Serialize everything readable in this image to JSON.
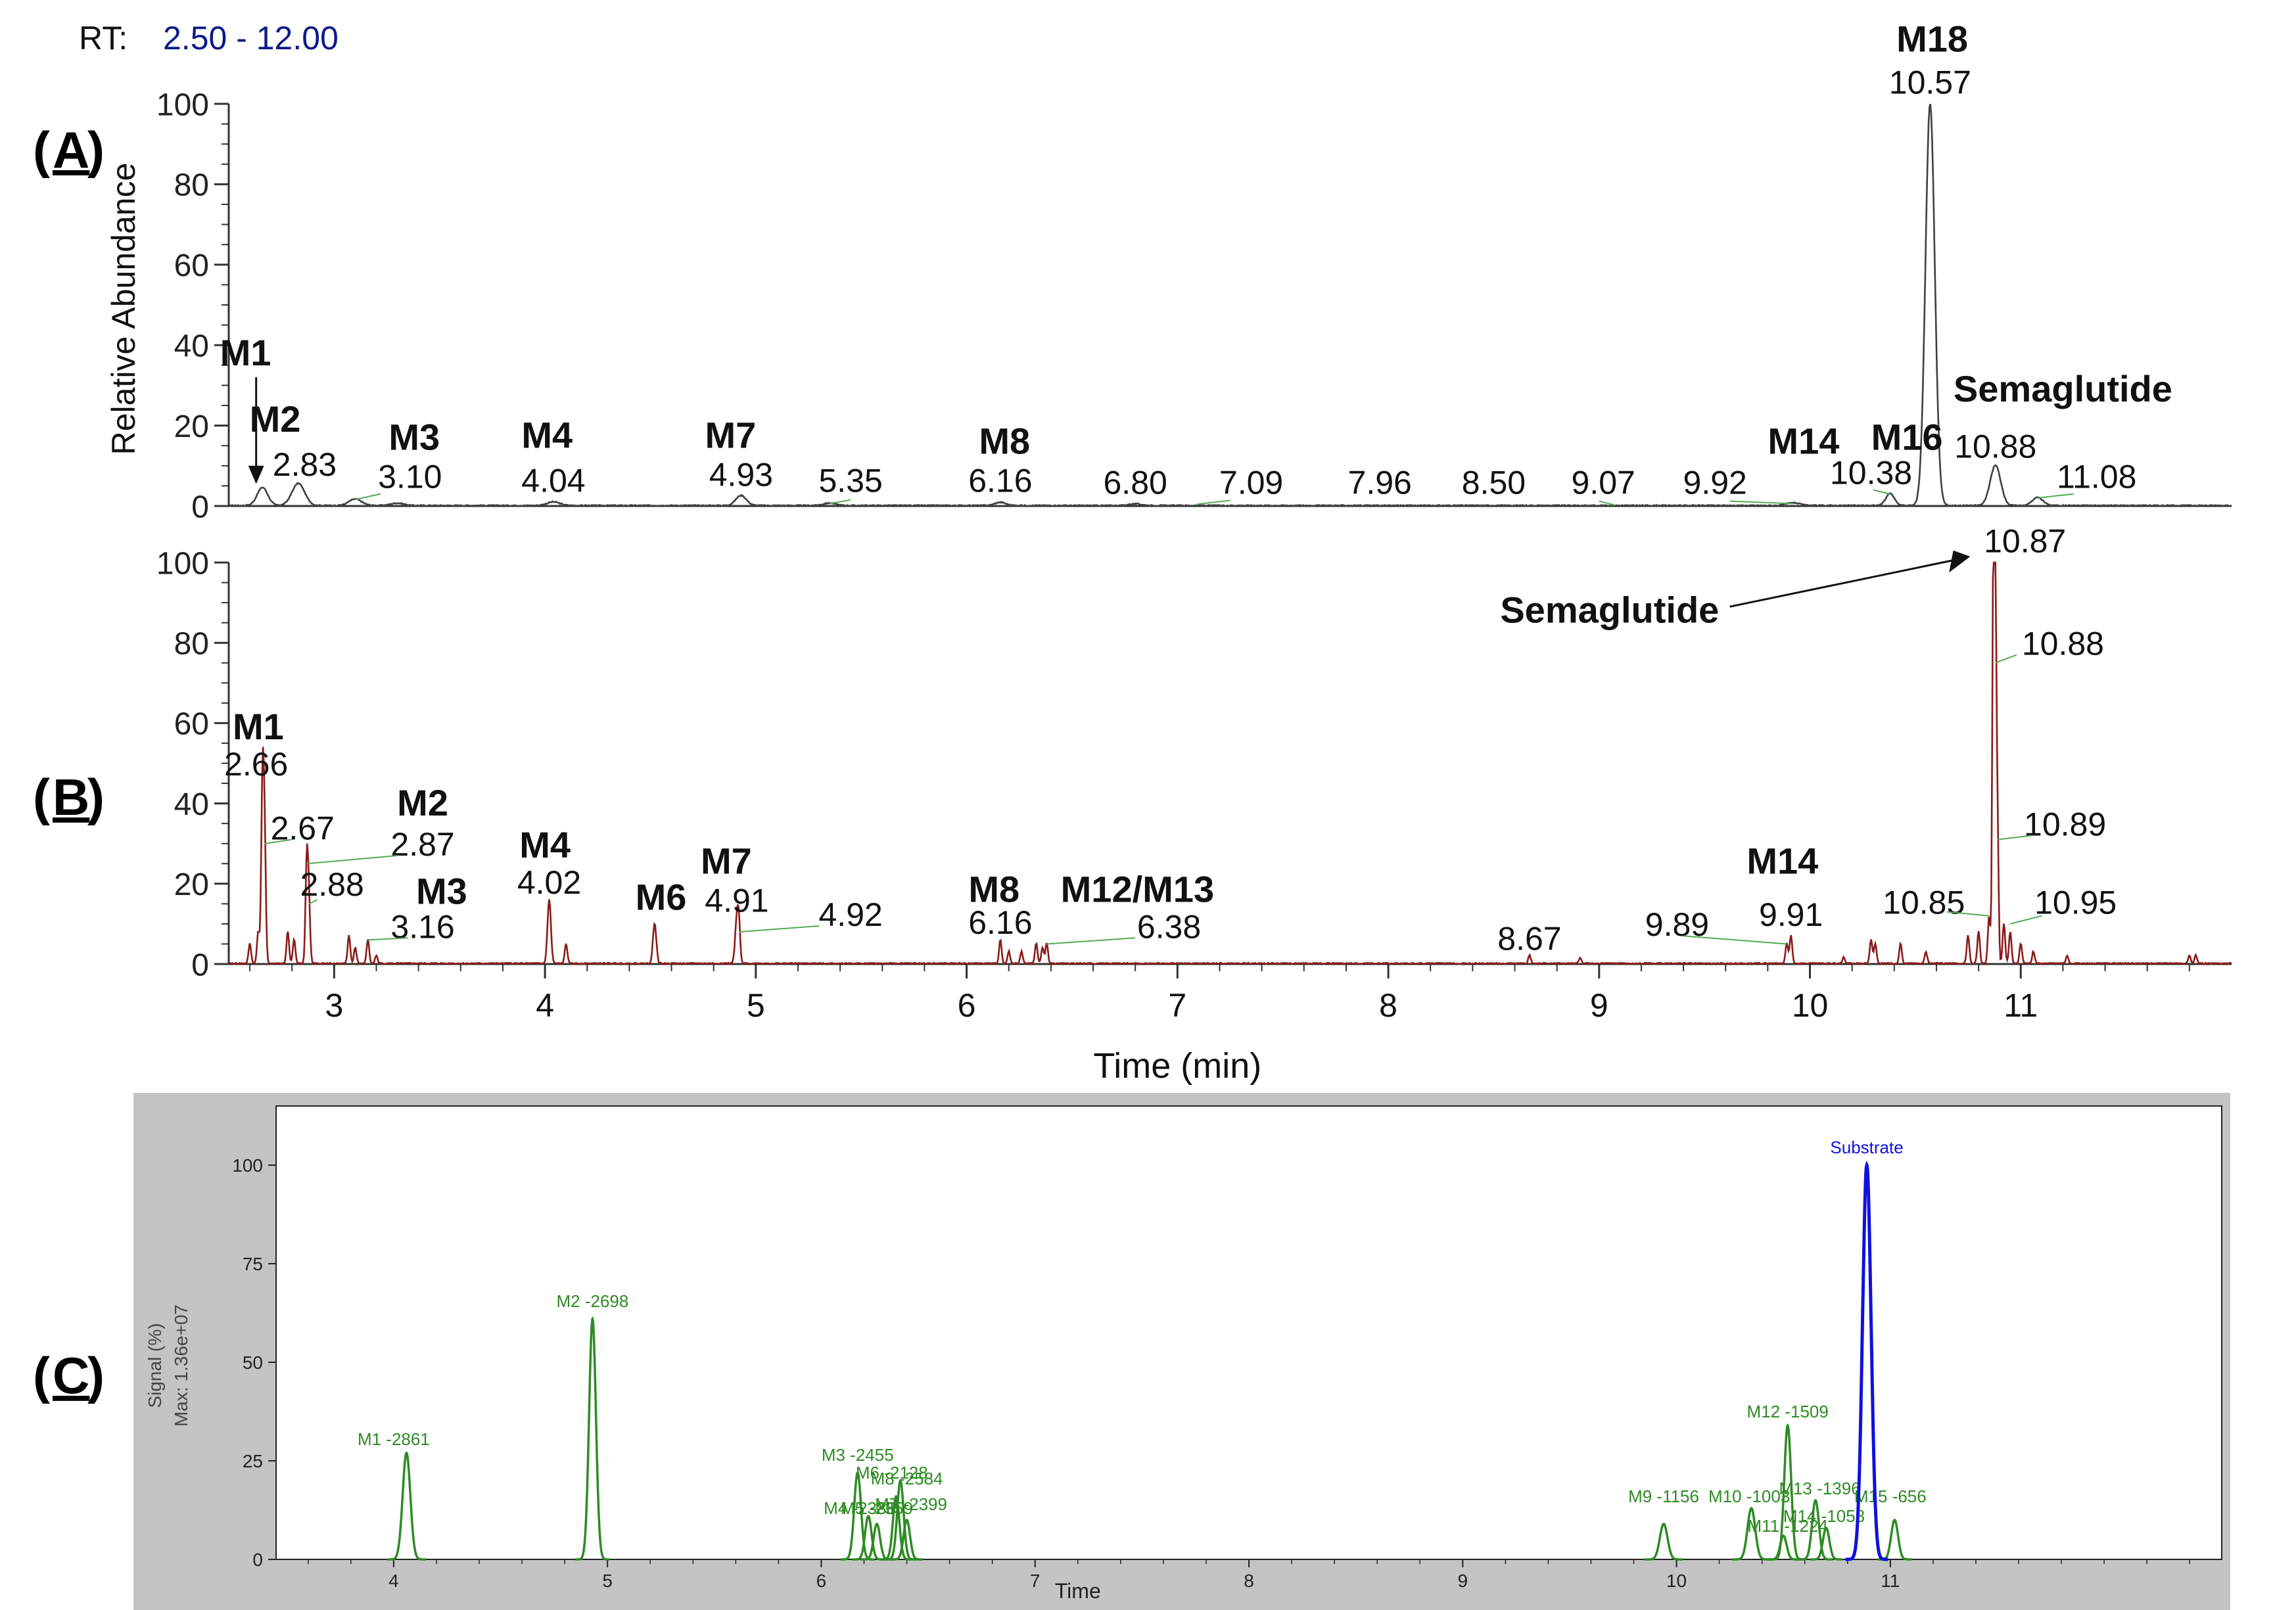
{
  "rt_label": "RT:",
  "rt_range": "2.50 - 12.00",
  "colors": {
    "ms_trace": "#404040",
    "red_trace": "#8b1a1a",
    "green_trace": "#2e8b24",
    "substrate": "#1010e0",
    "panel_c_bg": "#c4c4c4",
    "leader": "#55aa55",
    "rt_range": "#0b1a88"
  },
  "panel_labels": {
    "A": "A",
    "B": "B",
    "C": "C"
  },
  "chart_data": [
    {
      "type": "line",
      "panel": "A",
      "ylabel": "Relative Abundance",
      "xlim": [
        2.5,
        12.0
      ],
      "ylim": [
        0,
        100
      ],
      "yticks": [
        0,
        20,
        40,
        60,
        80,
        100
      ],
      "grid": false,
      "peaks": [
        {
          "x": 2.66,
          "y": 4.5,
          "w": 0.025
        },
        {
          "x": 2.83,
          "y": 5.5,
          "w": 0.03
        },
        {
          "x": 3.1,
          "y": 1.6,
          "w": 0.03
        },
        {
          "x": 3.3,
          "y": 0.6,
          "w": 0.03
        },
        {
          "x": 4.04,
          "y": 0.9,
          "w": 0.03
        },
        {
          "x": 4.93,
          "y": 2.5,
          "w": 0.025
        },
        {
          "x": 5.35,
          "y": 0.6,
          "w": 0.03
        },
        {
          "x": 6.16,
          "y": 0.8,
          "w": 0.025
        },
        {
          "x": 6.8,
          "y": 0.4,
          "w": 0.03
        },
        {
          "x": 9.92,
          "y": 0.7,
          "w": 0.03
        },
        {
          "x": 10.38,
          "y": 3.0,
          "w": 0.02
        },
        {
          "x": 10.57,
          "y": 100,
          "w": 0.022
        },
        {
          "x": 10.88,
          "y": 10.0,
          "w": 0.025
        },
        {
          "x": 11.08,
          "y": 2.0,
          "w": 0.025
        }
      ],
      "labels": [
        {
          "text": "2.83",
          "x": 2.86,
          "y": 7.5
        },
        {
          "text": "3.10",
          "x": 3.36,
          "y": 4.5
        },
        {
          "text": "4.04",
          "x": 4.04,
          "y": 3.5
        },
        {
          "text": "4.93",
          "x": 4.93,
          "y": 5.0
        },
        {
          "text": "5.35",
          "x": 5.45,
          "y": 3.5
        },
        {
          "text": "6.16",
          "x": 6.16,
          "y": 3.5
        },
        {
          "text": "6.80",
          "x": 6.8,
          "y": 3.0
        },
        {
          "text": "7.09",
          "x": 7.35,
          "y": 3.0
        },
        {
          "text": "7.96",
          "x": 7.96,
          "y": 3.0
        },
        {
          "text": "8.50",
          "x": 8.5,
          "y": 3.0
        },
        {
          "text": "9.07",
          "x": 9.02,
          "y": 3.0
        },
        {
          "text": "9.92",
          "x": 9.55,
          "y": 3.0
        },
        {
          "text": "10.38",
          "x": 10.29,
          "y": 5.5
        },
        {
          "text": "10.57",
          "x": 10.57,
          "y": 102.5
        },
        {
          "text": "10.88",
          "x": 10.88,
          "y": 12.0
        },
        {
          "text": "11.08",
          "x": 11.36,
          "y": 4.5
        }
      ],
      "metabolites": [
        {
          "text": "M1",
          "x": 2.58,
          "y": 35
        },
        {
          "text": "M2",
          "x": 2.72,
          "y": 18.5
        },
        {
          "text": "M3",
          "x": 3.38,
          "y": 14
        },
        {
          "text": "M4",
          "x": 4.01,
          "y": 14.5
        },
        {
          "text": "M7",
          "x": 4.88,
          "y": 14.5
        },
        {
          "text": "M8",
          "x": 6.18,
          "y": 13
        },
        {
          "text": "M14",
          "x": 9.97,
          "y": 13
        },
        {
          "text": "M16",
          "x": 10.46,
          "y": 14
        },
        {
          "text": "M18",
          "x": 10.58,
          "y": 113
        },
        {
          "text": "Semaglutide",
          "x": 11.2,
          "y": 26
        }
      ]
    },
    {
      "type": "line",
      "panel": "B",
      "xlabel": "Time (min)",
      "xlim": [
        2.5,
        12.0
      ],
      "ylim": [
        0,
        100
      ],
      "yticks": [
        0,
        20,
        40,
        60,
        80,
        100
      ],
      "xticks": [
        3,
        4,
        5,
        6,
        7,
        8,
        9,
        10,
        11
      ],
      "grid": false,
      "peaks": [
        {
          "x": 2.6,
          "y": 5,
          "w": 0.006
        },
        {
          "x": 2.64,
          "y": 8,
          "w": 0.006
        },
        {
          "x": 2.66,
          "y": 44,
          "w": 0.006
        },
        {
          "x": 2.67,
          "y": 30,
          "w": 0.006
        },
        {
          "x": 2.78,
          "y": 8,
          "w": 0.006
        },
        {
          "x": 2.81,
          "y": 6,
          "w": 0.006
        },
        {
          "x": 2.87,
          "y": 25,
          "w": 0.006
        },
        {
          "x": 2.88,
          "y": 15,
          "w": 0.006
        },
        {
          "x": 3.07,
          "y": 7,
          "w": 0.006
        },
        {
          "x": 3.1,
          "y": 4,
          "w": 0.006
        },
        {
          "x": 3.16,
          "y": 6,
          "w": 0.006
        },
        {
          "x": 3.2,
          "y": 2,
          "w": 0.006
        },
        {
          "x": 4.02,
          "y": 16,
          "w": 0.008
        },
        {
          "x": 4.1,
          "y": 5,
          "w": 0.006
        },
        {
          "x": 4.52,
          "y": 10,
          "w": 0.008
        },
        {
          "x": 4.91,
          "y": 11,
          "w": 0.008
        },
        {
          "x": 4.92,
          "y": 8,
          "w": 0.006
        },
        {
          "x": 6.16,
          "y": 6,
          "w": 0.006
        },
        {
          "x": 6.2,
          "y": 3,
          "w": 0.006
        },
        {
          "x": 6.26,
          "y": 3,
          "w": 0.006
        },
        {
          "x": 6.33,
          "y": 5,
          "w": 0.006
        },
        {
          "x": 6.36,
          "y": 4,
          "w": 0.006
        },
        {
          "x": 6.38,
          "y": 5,
          "w": 0.006
        },
        {
          "x": 8.67,
          "y": 2,
          "w": 0.006
        },
        {
          "x": 8.91,
          "y": 1.5,
          "w": 0.006
        },
        {
          "x": 9.89,
          "y": 5,
          "w": 0.006
        },
        {
          "x": 9.91,
          "y": 7,
          "w": 0.006
        },
        {
          "x": 10.16,
          "y": 1.5,
          "w": 0.006
        },
        {
          "x": 10.29,
          "y": 6,
          "w": 0.006
        },
        {
          "x": 10.31,
          "y": 5,
          "w": 0.006
        },
        {
          "x": 10.43,
          "y": 5,
          "w": 0.006
        },
        {
          "x": 10.55,
          "y": 3,
          "w": 0.006
        },
        {
          "x": 10.75,
          "y": 7,
          "w": 0.006
        },
        {
          "x": 10.8,
          "y": 8,
          "w": 0.006
        },
        {
          "x": 10.85,
          "y": 12,
          "w": 0.006
        },
        {
          "x": 10.87,
          "y": 100,
          "w": 0.005
        },
        {
          "x": 10.88,
          "y": 82,
          "w": 0.005
        },
        {
          "x": 10.89,
          "y": 32,
          "w": 0.005
        },
        {
          "x": 10.92,
          "y": 10,
          "w": 0.006
        },
        {
          "x": 10.95,
          "y": 8,
          "w": 0.006
        },
        {
          "x": 11.0,
          "y": 5,
          "w": 0.006
        },
        {
          "x": 11.06,
          "y": 3,
          "w": 0.006
        },
        {
          "x": 11.22,
          "y": 2,
          "w": 0.006
        },
        {
          "x": 11.8,
          "y": 2,
          "w": 0.006
        },
        {
          "x": 11.83,
          "y": 2,
          "w": 0.006
        }
      ],
      "labels": [
        {
          "text": "2.66",
          "x": 2.63,
          "y": 47
        },
        {
          "text": "2.67",
          "x": 2.85,
          "y": 31
        },
        {
          "text": "2.87",
          "x": 3.42,
          "y": 27
        },
        {
          "text": "2.88",
          "x": 2.99,
          "y": 17
        },
        {
          "text": "3.16",
          "x": 3.42,
          "y": 6.5
        },
        {
          "text": "4.02",
          "x": 4.02,
          "y": 17.5
        },
        {
          "text": "4.91",
          "x": 4.91,
          "y": 13
        },
        {
          "text": "4.92",
          "x": 5.45,
          "y": 9.5
        },
        {
          "text": "6.16",
          "x": 6.16,
          "y": 7.5
        },
        {
          "text": "6.38",
          "x": 6.96,
          "y": 6.5
        },
        {
          "text": "8.67",
          "x": 8.67,
          "y": 3.5
        },
        {
          "text": "9.89",
          "x": 9.37,
          "y": 7
        },
        {
          "text": "9.91",
          "x": 9.91,
          "y": 9.5
        },
        {
          "text": "10.85",
          "x": 10.54,
          "y": 12.5
        },
        {
          "text": "10.87",
          "x": 11.02,
          "y": 102.5
        },
        {
          "text": "10.88",
          "x": 11.2,
          "y": 77
        },
        {
          "text": "10.89",
          "x": 11.21,
          "y": 32
        },
        {
          "text": "10.95",
          "x": 11.26,
          "y": 12.5
        }
      ],
      "metabolites": [
        {
          "text": "M1",
          "x": 2.64,
          "y": 56
        },
        {
          "text": "M2",
          "x": 3.42,
          "y": 37
        },
        {
          "text": "M3",
          "x": 3.51,
          "y": 15
        },
        {
          "text": "M4",
          "x": 4.0,
          "y": 26.5
        },
        {
          "text": "M6",
          "x": 4.55,
          "y": 13.5
        },
        {
          "text": "M7",
          "x": 4.86,
          "y": 22.5
        },
        {
          "text": "M8",
          "x": 6.13,
          "y": 15.5
        },
        {
          "text": "M12/M13",
          "x": 6.81,
          "y": 15.5
        },
        {
          "text": "M14",
          "x": 9.87,
          "y": 22.5
        },
        {
          "text": "Semaglutide",
          "x": 9.05,
          "y": 85
        }
      ]
    },
    {
      "type": "line",
      "panel": "C",
      "xlabel": "Time",
      "ylabel": "Signal (%)",
      "ylabel2": "Max: 1.36e+07",
      "xlim": [
        3.45,
        12.55
      ],
      "ylim": [
        0,
        115
      ],
      "yticks": [
        0,
        25,
        50,
        75,
        100
      ],
      "xticks": [
        4,
        5,
        6,
        7,
        8,
        9,
        10,
        11
      ],
      "grid": false,
      "series": [
        {
          "name": "M1 -2861",
          "color": "green",
          "peaks": [
            {
              "x": 4.06,
              "y": 27,
              "w": 0.018
            }
          ],
          "label_x": 4.0,
          "label_y": 29
        },
        {
          "name": "M2 -2698",
          "color": "green",
          "peaks": [
            {
              "x": 4.93,
              "y": 61,
              "w": 0.016
            }
          ],
          "label_x": 4.93,
          "label_y": 64
        },
        {
          "name": "M3 -2455",
          "color": "green",
          "peaks": [
            {
              "x": 6.17,
              "y": 22,
              "w": 0.016
            }
          ],
          "label_x": 6.17,
          "label_y": 25
        },
        {
          "name": "M6 -2128",
          "color": "green",
          "peaks": [
            {
              "x": 6.37,
              "y": 20,
              "w": 0.015
            }
          ],
          "label_x": 6.33,
          "label_y": 20.5
        },
        {
          "name": "M8 -2584",
          "color": "green",
          "peaks": [
            {
              "x": 6.35,
              "y": 16,
              "w": 0.015
            }
          ],
          "label_x": 6.4,
          "label_y": 19.0
        },
        {
          "name": "M4 -2388",
          "color": "green",
          "peaks": [
            {
              "x": 6.22,
              "y": 11,
              "w": 0.015
            }
          ],
          "label_x": 6.18,
          "label_y": 11.5
        },
        {
          "name": "M5 -2359",
          "color": "green",
          "peaks": [
            {
              "x": 6.26,
              "y": 9,
              "w": 0.015
            }
          ],
          "label_x": 6.26,
          "label_y": 11.5
        },
        {
          "name": "M7 -2399",
          "color": "green",
          "peaks": [
            {
              "x": 6.4,
              "y": 10,
              "w": 0.015
            }
          ],
          "label_x": 6.42,
          "label_y": 12.5
        },
        {
          "name": "M9 -1156",
          "color": "green",
          "peaks": [
            {
              "x": 9.94,
              "y": 9,
              "w": 0.018
            }
          ],
          "label_x": 9.94,
          "label_y": 14.5
        },
        {
          "name": "M10 -1003",
          "color": "green",
          "peaks": [
            {
              "x": 10.35,
              "y": 13,
              "w": 0.018
            }
          ],
          "label_x": 10.34,
          "label_y": 14.5
        },
        {
          "name": "M11 -1224",
          "color": "green",
          "peaks": [
            {
              "x": 10.5,
              "y": 6,
              "w": 0.015
            }
          ],
          "label_x": 10.52,
          "label_y": 7.0
        },
        {
          "name": "M12 -1509",
          "color": "green",
          "peaks": [
            {
              "x": 10.52,
              "y": 34,
              "w": 0.016
            }
          ],
          "label_x": 10.52,
          "label_y": 36
        },
        {
          "name": "M13 -1396",
          "color": "green",
          "peaks": [
            {
              "x": 10.65,
              "y": 15,
              "w": 0.016
            }
          ],
          "label_x": 10.67,
          "label_y": 16.5
        },
        {
          "name": "M14 -1058",
          "color": "green",
          "peaks": [
            {
              "x": 10.7,
              "y": 8,
              "w": 0.015
            }
          ],
          "label_x": 10.69,
          "label_y": 9.5
        },
        {
          "name": "M15 -656",
          "color": "green",
          "peaks": [
            {
              "x": 11.02,
              "y": 10,
              "w": 0.016
            }
          ],
          "label_x": 11.0,
          "label_y": 14.5
        },
        {
          "name": "Substrate",
          "color": "blue",
          "peaks": [
            {
              "x": 10.89,
              "y": 100,
              "w": 0.02
            }
          ],
          "label_x": 10.89,
          "label_y": 103
        }
      ]
    }
  ]
}
